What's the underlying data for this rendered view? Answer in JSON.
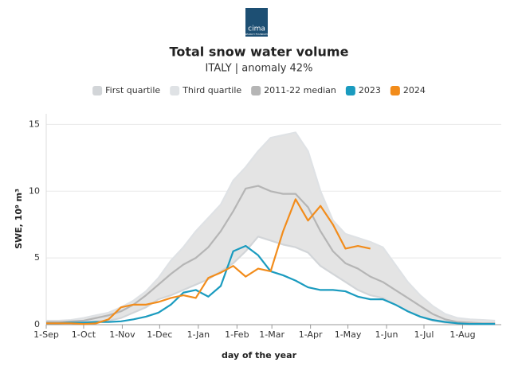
{
  "logo": {
    "text": "cima",
    "subtitle": "RESEARCH FOUNDATION"
  },
  "chart_data": {
    "type": "line",
    "title": "Total snow water volume",
    "subtitle": "ITALY | anomaly 42%",
    "x_label": "day of the year",
    "y_label": "SWE, 10⁹ m³",
    "x": [
      0,
      10,
      20,
      30,
      40,
      50,
      60,
      70,
      80,
      90,
      100,
      110,
      120,
      130,
      140,
      150,
      160,
      170,
      180,
      190,
      200,
      210,
      220,
      230,
      240,
      250,
      260,
      270,
      280,
      290,
      300,
      310,
      320,
      330,
      340,
      350,
      360
    ],
    "xlim": [
      0,
      365
    ],
    "xticks": [
      {
        "value": 0,
        "label": "1-Sep"
      },
      {
        "value": 30,
        "label": "1-Oct"
      },
      {
        "value": 61,
        "label": "1-Nov"
      },
      {
        "value": 91,
        "label": "1-Dec"
      },
      {
        "value": 122,
        "label": "1-Jan"
      },
      {
        "value": 153,
        "label": "1-Feb"
      },
      {
        "value": 181,
        "label": "1-Mar"
      },
      {
        "value": 212,
        "label": "1-Apr"
      },
      {
        "value": 242,
        "label": "1-May"
      },
      {
        "value": 273,
        "label": "1-Jun"
      },
      {
        "value": 303,
        "label": "1-Jul"
      },
      {
        "value": 334,
        "label": "1-Aug"
      }
    ],
    "ylim": [
      0,
      15.8
    ],
    "yticks": [
      0,
      5,
      10,
      15
    ],
    "grid": true,
    "band": {
      "lower": 0,
      "upper": 1,
      "color": "#e4e4e4"
    },
    "series": [
      {
        "name": "First quartile",
        "color": "#d2d5d8",
        "values": [
          0.1,
          0.1,
          0.1,
          0.2,
          0.25,
          0.3,
          0.5,
          0.9,
          1.3,
          1.9,
          2.2,
          2.6,
          3.0,
          3.4,
          4.0,
          4.6,
          5.5,
          6.6,
          6.3,
          6.0,
          5.8,
          5.4,
          4.4,
          3.8,
          3.2,
          2.6,
          2.2,
          2.0,
          1.5,
          1.0,
          0.6,
          0.3,
          0.15,
          0.1,
          0.1,
          0.1,
          0.1
        ]
      },
      {
        "name": "Third quartile",
        "color": "#dfe2e5",
        "values": [
          0.3,
          0.3,
          0.35,
          0.5,
          0.7,
          0.9,
          1.3,
          1.8,
          2.5,
          3.5,
          4.8,
          5.8,
          7.0,
          8.0,
          9.0,
          10.8,
          11.8,
          13.0,
          14.0,
          14.2,
          14.4,
          13.0,
          10.0,
          7.8,
          6.8,
          6.5,
          6.2,
          5.8,
          4.5,
          3.2,
          2.2,
          1.4,
          0.8,
          0.5,
          0.4,
          0.35,
          0.3
        ]
      },
      {
        "name": "2011-22 median",
        "color": "#b5b5b5",
        "values": [
          0.2,
          0.2,
          0.25,
          0.3,
          0.5,
          0.7,
          1.0,
          1.5,
          2.2,
          3.0,
          3.8,
          4.5,
          5.0,
          5.8,
          7.0,
          8.5,
          10.2,
          10.4,
          10.0,
          9.8,
          9.8,
          8.8,
          7.0,
          5.5,
          4.6,
          4.2,
          3.6,
          3.2,
          2.6,
          2.0,
          1.4,
          0.8,
          0.4,
          0.2,
          0.15,
          0.1,
          0.1
        ]
      },
      {
        "name": "2023",
        "color": "#1a9bbf",
        "values": [
          0.1,
          0.1,
          0.15,
          0.15,
          0.2,
          0.2,
          0.25,
          0.4,
          0.6,
          0.9,
          1.5,
          2.4,
          2.6,
          2.1,
          2.9,
          5.5,
          5.9,
          5.2,
          4.0,
          3.7,
          3.3,
          2.8,
          2.6,
          2.6,
          2.5,
          2.1,
          1.9,
          1.9,
          1.5,
          1.0,
          0.6,
          0.35,
          0.2,
          0.1,
          0.05,
          0.05,
          0.05
        ]
      },
      {
        "name": "2024",
        "color": "#f28c1b",
        "values": [
          0.1,
          0.1,
          0.1,
          0.05,
          0.1,
          0.4,
          1.3,
          1.5,
          1.5,
          1.7,
          2.0,
          2.2,
          2.0,
          3.5,
          3.9,
          4.4,
          3.6,
          4.2,
          4.0,
          7.0,
          9.4,
          7.8,
          8.9,
          7.5,
          5.7,
          5.9,
          5.7,
          null,
          null,
          null,
          null,
          null,
          null,
          null,
          null,
          null,
          null
        ]
      }
    ]
  }
}
